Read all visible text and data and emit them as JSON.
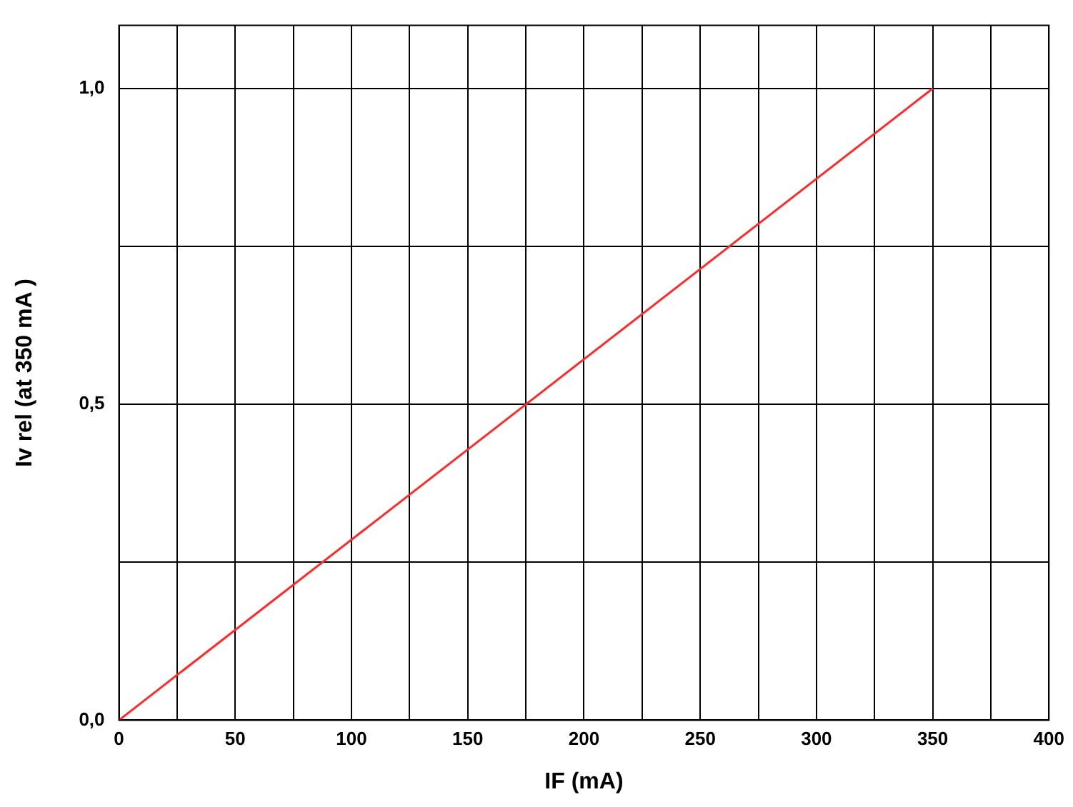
{
  "chart_data": {
    "type": "line",
    "xlabel": "IF (mA)",
    "ylabel": "Iv rel (at 350 mA )",
    "x": [
      0,
      350
    ],
    "series": [
      {
        "color": "#ff2a2a",
        "values": [
          0,
          1
        ]
      }
    ],
    "xlim": [
      0,
      400
    ],
    "xticks": [
      0,
      {
        "value": 25,
        "label": null
      },
      50,
      {
        "value": 75,
        "label": null
      },
      100,
      {
        "value": 125,
        "label": null
      },
      150,
      {
        "value": 175,
        "label": null
      },
      200,
      {
        "value": 225,
        "label": null
      },
      250,
      {
        "value": 275,
        "label": null
      },
      300,
      {
        "value": 325,
        "label": null
      },
      350,
      {
        "value": 375,
        "label": null
      },
      400
    ],
    "ylim": [
      0,
      1.1
    ],
    "yticks": [
      {
        "value": 0,
        "label": "0,0"
      },
      {
        "value": 0.25,
        "label": null
      },
      {
        "value": 0.5,
        "label": "0,5"
      },
      {
        "value": 0.75,
        "label": null
      },
      {
        "value": 1,
        "label": "1,0"
      }
    ],
    "grid": true,
    "legend": false,
    "marker": "none",
    "line_style": "solid"
  }
}
